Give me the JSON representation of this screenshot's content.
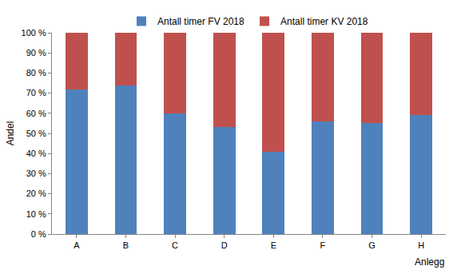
{
  "chart_data": {
    "type": "bar",
    "stacked": true,
    "categories": [
      "A",
      "B",
      "C",
      "D",
      "E",
      "F",
      "G",
      "H"
    ],
    "series": [
      {
        "name": "Antall timer FV 2018",
        "color": "#4f81bd",
        "values": [
          72,
          74,
          60,
          53,
          41,
          56,
          55,
          59
        ]
      },
      {
        "name": "Antall timer KV 2018",
        "color": "#c0504d",
        "values": [
          28,
          26,
          40,
          47,
          59,
          44,
          45,
          41
        ]
      }
    ],
    "x_label": "Anlegg",
    "y_label": "Andel",
    "ylim": [
      0,
      100
    ],
    "yticks": [
      {
        "value": 0,
        "label": "0 %"
      },
      {
        "value": 10,
        "label": "10 %"
      },
      {
        "value": 20,
        "label": "20 %"
      },
      {
        "value": 30,
        "label": "30 %"
      },
      {
        "value": 40,
        "label": "40 %"
      },
      {
        "value": 50,
        "label": "50 %"
      },
      {
        "value": 60,
        "label": "60 %"
      },
      {
        "value": 70,
        "label": "70 %"
      },
      {
        "value": 80,
        "label": "80 %"
      },
      {
        "value": 90,
        "label": "90 %"
      },
      {
        "value": 100,
        "label": "100 %"
      }
    ],
    "grid": false,
    "legend": "top"
  }
}
